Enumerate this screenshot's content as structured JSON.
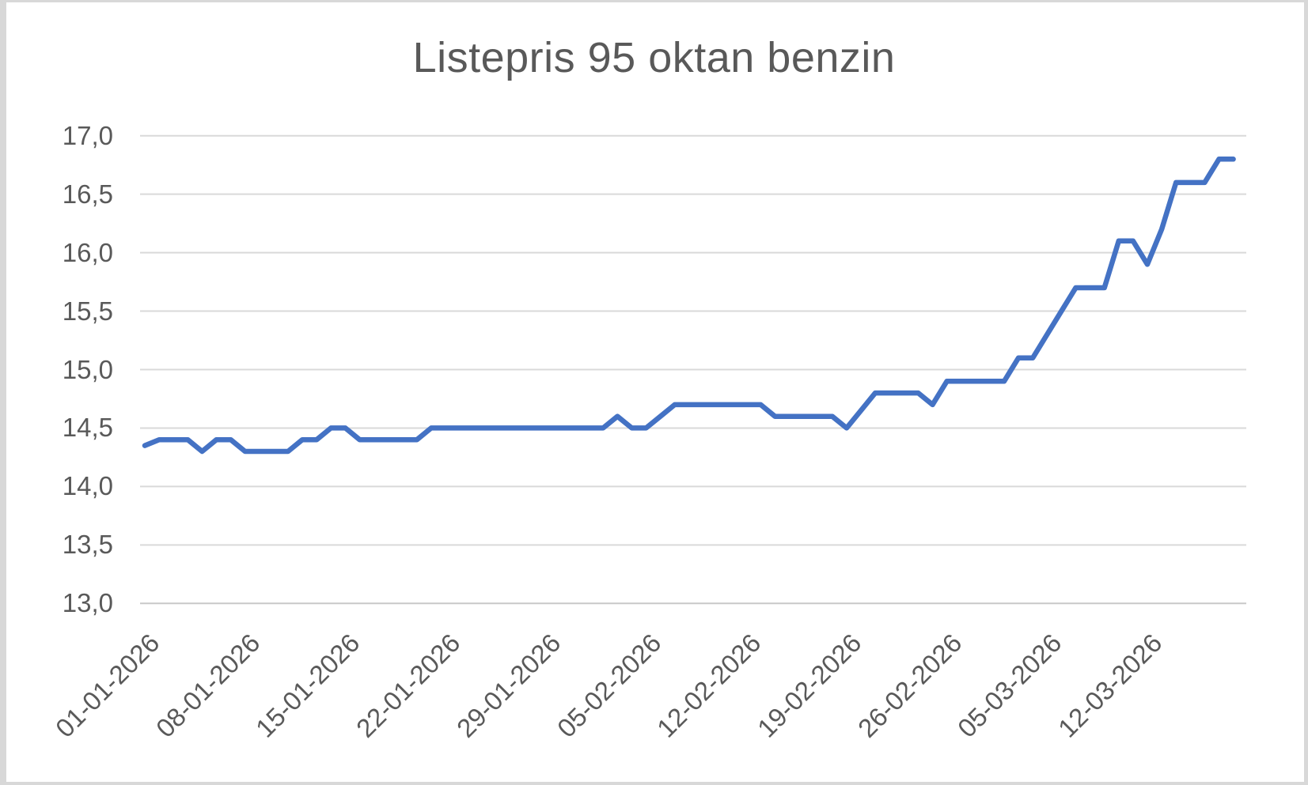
{
  "chart_data": {
    "type": "line",
    "title": "Listepris 95 oktan benzin",
    "legend": "none",
    "grid": "horizontal",
    "line_color": "#4472C4",
    "grid_color": "#d9d9d9",
    "axis_line_color": "#c8c8c8",
    "text_color": "#595959",
    "decimal_separator": ",",
    "ylim": [
      13.0,
      17.0
    ],
    "y_major_step": 0.5,
    "y_tick_labels": [
      "17,0",
      "16,5",
      "16,0",
      "15,5",
      "15,0",
      "14,5",
      "14,0",
      "13,5",
      "13,0"
    ],
    "x_tick_labels": [
      "01-01-2026",
      "08-01-2026",
      "15-01-2026",
      "22-01-2026",
      "29-01-2026",
      "05-02-2026",
      "12-02-2026",
      "19-02-2026",
      "26-02-2026",
      "05-03-2026",
      "12-03-2026"
    ],
    "x_tick_every_days": 7,
    "x": [
      "01-01-2026",
      "02-01-2026",
      "03-01-2026",
      "04-01-2026",
      "05-01-2026",
      "06-01-2026",
      "07-01-2026",
      "08-01-2026",
      "09-01-2026",
      "10-01-2026",
      "11-01-2026",
      "12-01-2026",
      "13-01-2026",
      "14-01-2026",
      "15-01-2026",
      "16-01-2026",
      "17-01-2026",
      "18-01-2026",
      "19-01-2026",
      "20-01-2026",
      "21-01-2026",
      "22-01-2026",
      "23-01-2026",
      "24-01-2026",
      "25-01-2026",
      "26-01-2026",
      "27-01-2026",
      "28-01-2026",
      "29-01-2026",
      "30-01-2026",
      "31-01-2026",
      "01-02-2026",
      "02-02-2026",
      "03-02-2026",
      "04-02-2026",
      "05-02-2026",
      "06-02-2026",
      "07-02-2026",
      "08-02-2026",
      "09-02-2026",
      "10-02-2026",
      "11-02-2026",
      "12-02-2026",
      "13-02-2026",
      "14-02-2026",
      "15-02-2026",
      "16-02-2026",
      "17-02-2026",
      "18-02-2026",
      "19-02-2026",
      "20-02-2026",
      "21-02-2026",
      "22-02-2026",
      "23-02-2026",
      "24-02-2026",
      "25-02-2026",
      "26-02-2026",
      "27-02-2026",
      "28-02-2026",
      "01-03-2026",
      "02-03-2026",
      "03-03-2026",
      "04-03-2026",
      "05-03-2026",
      "06-03-2026",
      "07-03-2026",
      "08-03-2026",
      "09-03-2026",
      "10-03-2026",
      "11-03-2026",
      "12-03-2026",
      "13-03-2026",
      "14-03-2026",
      "15-03-2026",
      "16-03-2026",
      "17-03-2026",
      "18-03-2026"
    ],
    "values": [
      14.35,
      14.4,
      14.4,
      14.4,
      14.3,
      14.4,
      14.4,
      14.3,
      14.3,
      14.3,
      14.3,
      14.4,
      14.4,
      14.5,
      14.5,
      14.4,
      14.4,
      14.4,
      14.4,
      14.4,
      14.5,
      14.5,
      14.5,
      14.5,
      14.5,
      14.5,
      14.5,
      14.5,
      14.5,
      14.5,
      14.5,
      14.5,
      14.5,
      14.6,
      14.5,
      14.5,
      14.6,
      14.7,
      14.7,
      14.7,
      14.7,
      14.7,
      14.7,
      14.7,
      14.6,
      14.6,
      14.6,
      14.6,
      14.6,
      14.5,
      14.65,
      14.8,
      14.8,
      14.8,
      14.8,
      14.7,
      14.9,
      14.9,
      14.9,
      14.9,
      14.9,
      15.1,
      15.1,
      15.3,
      15.5,
      15.7,
      15.7,
      15.7,
      16.1,
      16.1,
      15.9,
      16.2,
      16.6,
      16.6,
      16.6,
      16.8,
      16.8
    ]
  }
}
